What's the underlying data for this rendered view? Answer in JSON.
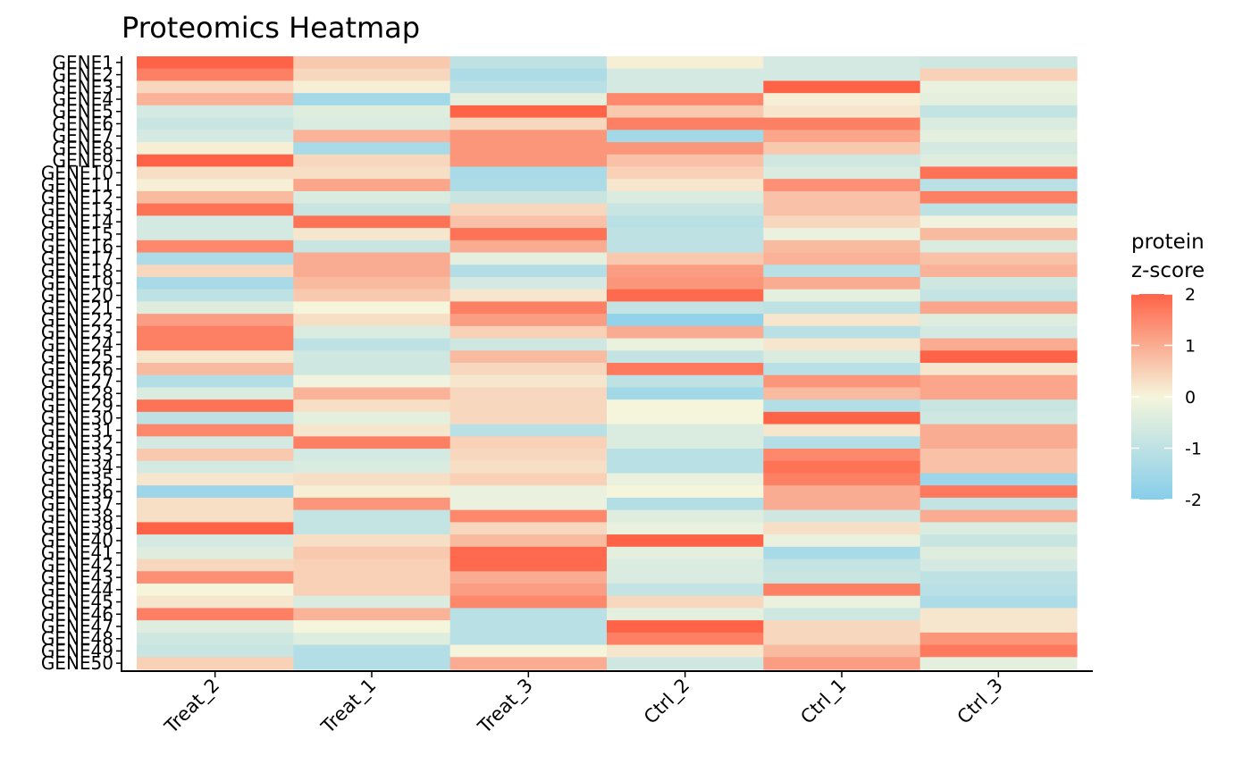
{
  "chart_data": {
    "type": "heatmap",
    "title": "Proteomics Heatmap",
    "columns": [
      "Treat_2",
      "Treat_1",
      "Treat_3",
      "Ctrl_2",
      "Ctrl_1",
      "Ctrl_3"
    ],
    "rows": [
      "GENE1",
      "GENE2",
      "GENE3",
      "GENE4",
      "GENE5",
      "GENE6",
      "GENE7",
      "GENE8",
      "GENE9",
      "GENE10",
      "GENE11",
      "GENE12",
      "GENE13",
      "GENE14",
      "GENE15",
      "GENE16",
      "GENE17",
      "GENE18",
      "GENE19",
      "GENE20",
      "GENE21",
      "GENE22",
      "GENE23",
      "GENE24",
      "GENE25",
      "GENE26",
      "GENE27",
      "GENE28",
      "GENE29",
      "GENE30",
      "GENE31",
      "GENE32",
      "GENE33",
      "GENE34",
      "GENE35",
      "GENE36",
      "GENE37",
      "GENE38",
      "GENE39",
      "GENE40",
      "GENE41",
      "GENE42",
      "GENE43",
      "GENE44",
      "GENE45",
      "GENE46",
      "GENE47",
      "GENE48",
      "GENE49",
      "GENE50"
    ],
    "values": [
      [
        2.0,
        0.6,
        -1.0,
        0.1,
        -0.6,
        -0.7
      ],
      [
        1.6,
        0.4,
        -1.3,
        -0.6,
        -0.6,
        0.5
      ],
      [
        0.4,
        0.1,
        -1.1,
        -0.6,
        2.0,
        -0.2
      ],
      [
        0.9,
        -1.5,
        -0.3,
        1.5,
        0.1,
        -0.3
      ],
      [
        -0.6,
        -0.4,
        2.0,
        0.6,
        0.2,
        -0.9
      ],
      [
        -0.8,
        -0.5,
        0.4,
        1.6,
        1.6,
        -0.5
      ],
      [
        -0.6,
        0.9,
        1.3,
        -1.5,
        1.1,
        -0.3
      ],
      [
        0.1,
        -1.4,
        1.3,
        1.3,
        0.6,
        -0.6
      ],
      [
        2.0,
        0.4,
        1.3,
        0.7,
        -0.7,
        -0.4
      ],
      [
        0.3,
        0.3,
        -1.4,
        0.5,
        -0.5,
        1.8
      ],
      [
        0.1,
        1.1,
        -1.3,
        0.2,
        1.4,
        -1.1
      ],
      [
        0.8,
        -0.5,
        -0.8,
        -0.5,
        0.7,
        1.6
      ],
      [
        1.8,
        -0.8,
        0.4,
        -0.8,
        0.7,
        -1.0
      ],
      [
        -0.6,
        1.8,
        0.7,
        -1.1,
        0.4,
        -0.1
      ],
      [
        -0.6,
        0.2,
        1.8,
        -1.0,
        -0.2,
        0.8
      ],
      [
        1.5,
        -0.8,
        1.0,
        -1.0,
        0.8,
        -0.5
      ],
      [
        -1.3,
        1.0,
        -0.3,
        0.6,
        0.9,
        0.7
      ],
      [
        0.4,
        1.0,
        -1.2,
        1.2,
        -1.1,
        0.9
      ],
      [
        -1.4,
        0.8,
        -0.6,
        1.3,
        1.0,
        -0.7
      ],
      [
        -1.0,
        0.6,
        0.2,
        1.9,
        -0.3,
        -0.9
      ],
      [
        -0.4,
        0.0,
        1.6,
        -0.9,
        -1.0,
        1.1
      ],
      [
        1.2,
        0.3,
        1.2,
        -1.8,
        0.2,
        -0.4
      ],
      [
        1.6,
        -0.5,
        0.5,
        1.0,
        -1.1,
        -0.6
      ],
      [
        1.6,
        -1.0,
        -0.7,
        -0.2,
        0.2,
        1.0
      ],
      [
        0.2,
        -0.7,
        0.8,
        -0.9,
        -0.5,
        2.0
      ],
      [
        0.8,
        -0.7,
        0.4,
        1.7,
        -1.1,
        0.2
      ],
      [
        -1.2,
        -0.1,
        0.2,
        -1.0,
        1.3,
        1.1
      ],
      [
        -0.5,
        0.9,
        0.4,
        -1.5,
        0.8,
        1.1
      ],
      [
        1.8,
        0.3,
        0.4,
        0.0,
        -1.2,
        -0.8
      ],
      [
        -1.0,
        -0.3,
        0.4,
        0.0,
        2.0,
        -0.7
      ],
      [
        1.5,
        0.2,
        -1.1,
        -0.5,
        0.2,
        1.0
      ],
      [
        -0.6,
        1.6,
        0.5,
        -0.5,
        -1.2,
        1.0
      ],
      [
        0.6,
        -0.6,
        0.4,
        -1.1,
        1.5,
        0.7
      ],
      [
        -0.6,
        -0.5,
        0.3,
        -1.1,
        1.8,
        0.7
      ],
      [
        0.2,
        0.3,
        0.5,
        -0.2,
        1.6,
        -1.6
      ],
      [
        -1.6,
        0.1,
        -0.2,
        0.0,
        1.0,
        1.7
      ],
      [
        0.3,
        1.3,
        -0.2,
        -1.2,
        1.0,
        -0.9
      ],
      [
        0.3,
        -0.9,
        1.5,
        -0.4,
        -0.7,
        1.0
      ],
      [
        2.0,
        -0.9,
        0.4,
        -0.2,
        0.3,
        -0.5
      ],
      [
        -0.6,
        0.3,
        0.8,
        2.0,
        -0.2,
        -0.8
      ],
      [
        -0.4,
        0.6,
        1.9,
        -0.3,
        -1.4,
        -0.4
      ],
      [
        0.4,
        0.5,
        1.9,
        -0.5,
        -0.9,
        -0.6
      ],
      [
        1.4,
        0.5,
        1.0,
        -0.5,
        -0.8,
        -1.0
      ],
      [
        0.0,
        0.5,
        1.2,
        -0.9,
        1.6,
        -1.1
      ],
      [
        0.2,
        -0.5,
        1.5,
        0.4,
        -0.2,
        -1.3
      ],
      [
        1.6,
        0.9,
        -1.1,
        -0.3,
        -0.7,
        0.2
      ],
      [
        -0.4,
        0.0,
        -1.1,
        2.0,
        0.4,
        0.2
      ],
      [
        -0.7,
        -0.4,
        -1.1,
        1.6,
        0.4,
        1.3
      ],
      [
        -0.8,
        -1.2,
        0.0,
        0.2,
        0.8,
        1.7
      ],
      [
        0.5,
        -1.2,
        1.0,
        -0.7,
        1.2,
        -0.3
      ]
    ],
    "legend": {
      "title_line1": "protein",
      "title_line2": "z-score",
      "ticks": [
        "2",
        "1",
        "0",
        "-1",
        "-2"
      ],
      "tick_values": [
        2,
        1,
        0,
        -1,
        -2
      ],
      "placement": "right"
    },
    "color_scale": {
      "low": "#87ceeb",
      "mid": "#f5f5dc",
      "high": "#ff6347",
      "range": [
        -2,
        2
      ]
    },
    "grid": false
  }
}
